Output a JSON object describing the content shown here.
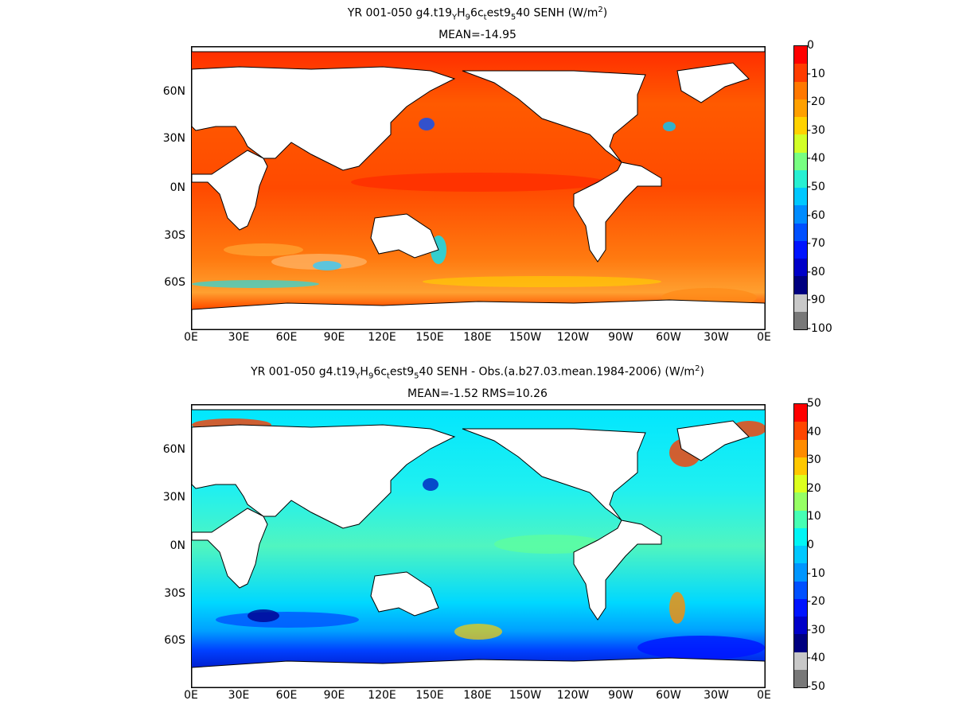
{
  "panels": [
    {
      "title_line1_prefix": "YR 001-050 g4.t19",
      "title_sub1": "Y",
      "title_mid1": "H",
      "title_sub2": "9",
      "title_mid2": "6c",
      "title_sub3": "t",
      "title_mid3": "est9",
      "title_sub4": "5",
      "title_suffix": "40  SENH (W/m",
      "title_sup": "2",
      "title_close": ")",
      "subtitle": "MEAN=-14.95",
      "colorbar_ticks": [
        "0",
        "-10",
        "-20",
        "-30",
        "-40",
        "-50",
        "-60",
        "-70",
        "-80",
        "-90",
        "-100"
      ],
      "colorbar_colors": [
        "#ff0000",
        "#ff3c00",
        "#ff7800",
        "#ffa000",
        "#ffd200",
        "#d2ff28",
        "#78ff82",
        "#28f0d2",
        "#00c8ff",
        "#008cff",
        "#0050ff",
        "#0014ff",
        "#0000c8",
        "#000080",
        "#c8c8c8",
        "#787878"
      ],
      "ocean_colors": [
        "#ff6a00",
        "#ff4a00",
        "#ff8c1a",
        "#ff2a00",
        "#ffa030",
        "#33ccff",
        "#00e5ff"
      ]
    },
    {
      "title_line1_prefix": "YR 001-050 g4.t19",
      "title_sub1": "Y",
      "title_mid1": "H",
      "title_sub2": "9",
      "title_mid2": "6c",
      "title_sub3": "t",
      "title_mid3": "est9",
      "title_sub4": "5",
      "title_suffix": "40 SENH - Obs.(a.b27.03.mean.1984-2006) (W/m",
      "title_sup": "2",
      "title_close": ")",
      "subtitle": "MEAN=-1.52 RMS=10.26",
      "colorbar_ticks": [
        "50",
        "40",
        "30",
        "20",
        "10",
        "0",
        "-10",
        "-20",
        "-30",
        "-40",
        "-50"
      ],
      "colorbar_colors": [
        "#ff0000",
        "#ff4600",
        "#ff8c00",
        "#ffc800",
        "#dcff1e",
        "#96ff64",
        "#46ffb4",
        "#00f5f5",
        "#00c8ff",
        "#0096ff",
        "#0050ff",
        "#0014ff",
        "#0000c8",
        "#000080",
        "#c8c8c8",
        "#787878"
      ],
      "ocean_colors": [
        "#00e6ff",
        "#28f0e0",
        "#00b4ff",
        "#0046ff",
        "#60ff9a",
        "#ff3c00",
        "#ffd000"
      ]
    }
  ],
  "lat_labels": [
    "60N",
    "30N",
    "0N",
    "30S",
    "60S"
  ],
  "lon_labels": [
    "0E",
    "30E",
    "60E",
    "90E",
    "120E",
    "150E",
    "180E",
    "150W",
    "120W",
    "90W",
    "60W",
    "30W",
    "0E"
  ],
  "land_color": "#ffffff",
  "coast_color": "#000000"
}
